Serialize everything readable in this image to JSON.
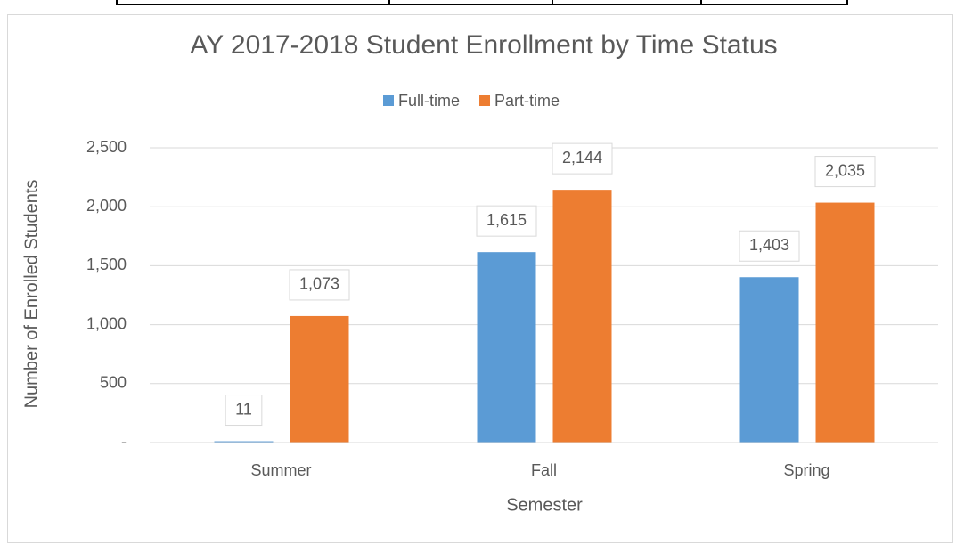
{
  "chart_data": {
    "type": "bar",
    "title": "AY 2017-2018 Student Enrollment by Time Status",
    "x_label": "Semester",
    "y_label": "Number of Enrolled Students",
    "categories": [
      "Summer",
      "Fall",
      "Spring"
    ],
    "series": [
      {
        "name": "Full-time",
        "color": "#5b9bd5",
        "values": [
          11,
          1615,
          1403
        ],
        "value_labels": [
          "11",
          "1,615",
          "1,403"
        ]
      },
      {
        "name": "Part-time",
        "color": "#ed7d31",
        "values": [
          1073,
          2144,
          2035
        ],
        "value_labels": [
          "1,073",
          "2,144",
          "2,035"
        ]
      }
    ],
    "ylim": [
      0,
      2500
    ],
    "yticks": [
      {
        "value": 0,
        "label": "-"
      },
      500,
      {
        "value": 1000,
        "label": "1,000"
      },
      {
        "value": 1500,
        "label": "1,500"
      },
      {
        "value": 2000,
        "label": "2,000"
      },
      {
        "value": 2500,
        "label": "2,500"
      }
    ],
    "grid": true,
    "legend": "top"
  }
}
